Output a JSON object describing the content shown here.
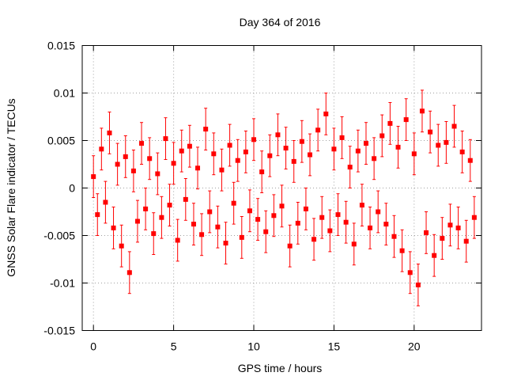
{
  "chart_data": {
    "type": "scatter",
    "title": "Day 364 of 2016",
    "xlabel": "GPS time / hours",
    "ylabel": "GNSS Solar Flare indicator / TECUs",
    "xlim": [
      -0.7,
      24.2
    ],
    "ylim": [
      -0.015,
      0.015
    ],
    "x_ticks": [
      0,
      5,
      10,
      15,
      20
    ],
    "x_tick_labels": [
      "0",
      "5",
      "10",
      "15",
      "20"
    ],
    "y_ticks": [
      -0.015,
      -0.01,
      -0.005,
      0,
      0.005,
      0.01,
      0.015
    ],
    "y_tick_labels": [
      "-0.015",
      "-0.01",
      "-0.005",
      "0",
      "0.005",
      "0.01",
      "0.015"
    ],
    "grid": true,
    "series_color": "#ff0000",
    "marker": "square",
    "error_bars": true,
    "typical_error": 0.0022,
    "series": [
      {
        "x": [
          0.0,
          0.25,
          0.5,
          0.75,
          1.0,
          1.25,
          1.5,
          1.75,
          2.0,
          2.25,
          2.5,
          2.75,
          3.0,
          3.25,
          3.5,
          3.75,
          4.0,
          4.25,
          4.5,
          4.75,
          5.0,
          5.25,
          5.5,
          5.75,
          6.0,
          6.25,
          6.5,
          6.75,
          7.0,
          7.25,
          7.5,
          7.75,
          8.0,
          8.25,
          8.5,
          8.75,
          9.0,
          9.25,
          9.5,
          9.75,
          10.0,
          10.25,
          10.5,
          10.75,
          11.0,
          11.25,
          11.5,
          11.75,
          12.0,
          12.25,
          12.5,
          12.75,
          13.0,
          13.25,
          13.5,
          13.75,
          14.0,
          14.25,
          14.5,
          14.75,
          15.0,
          15.25,
          15.5,
          15.75,
          16.0,
          16.25,
          16.5,
          16.75,
          17.0,
          17.25,
          17.5,
          17.75,
          18.0,
          18.25,
          18.5,
          18.75,
          19.0,
          19.25,
          19.5,
          19.75,
          20.0,
          20.25,
          20.5,
          20.75,
          21.0,
          21.25,
          21.5,
          21.75,
          22.0,
          22.25,
          22.5,
          22.75,
          23.0,
          23.25,
          23.5,
          23.75
        ],
        "y": [
          0.0012,
          -0.0028,
          0.0041,
          -0.0015,
          0.0058,
          -0.0042,
          0.0025,
          -0.0061,
          0.0033,
          -0.0089,
          0.0018,
          -0.0035,
          0.0047,
          -0.0022,
          0.0031,
          -0.0048,
          0.0015,
          -0.0031,
          0.0052,
          -0.0018,
          0.0026,
          -0.0055,
          0.0039,
          -0.0012,
          0.0044,
          -0.0038,
          0.0021,
          -0.0049,
          0.0062,
          -0.0025,
          0.0036,
          -0.0041,
          0.0019,
          -0.0058,
          0.0045,
          -0.0016,
          0.0029,
          -0.0052,
          0.0038,
          -0.0024,
          0.0051,
          -0.0033,
          0.0017,
          -0.0046,
          0.0034,
          -0.0029,
          0.0056,
          -0.0019,
          0.0042,
          -0.0061,
          0.0028,
          -0.0037,
          0.0049,
          -0.0022,
          0.0035,
          -0.0054,
          0.0061,
          -0.0031,
          0.0078,
          -0.0045,
          0.0041,
          -0.0028,
          0.0053,
          -0.0036,
          0.0022,
          -0.0059,
          0.0039,
          -0.0018,
          0.0047,
          -0.0042,
          0.0031,
          -0.0025,
          0.0055,
          -0.0038,
          0.0068,
          -0.0051,
          0.0043,
          -0.0066,
          0.0072,
          -0.0089,
          0.0036,
          -0.0102,
          0.0081,
          -0.0047,
          0.0059,
          -0.0071,
          0.0045,
          -0.0053,
          0.0048,
          -0.0039,
          0.0065,
          -0.0042,
          0.0038,
          -0.0056,
          0.0029,
          -0.0031
        ]
      }
    ]
  }
}
